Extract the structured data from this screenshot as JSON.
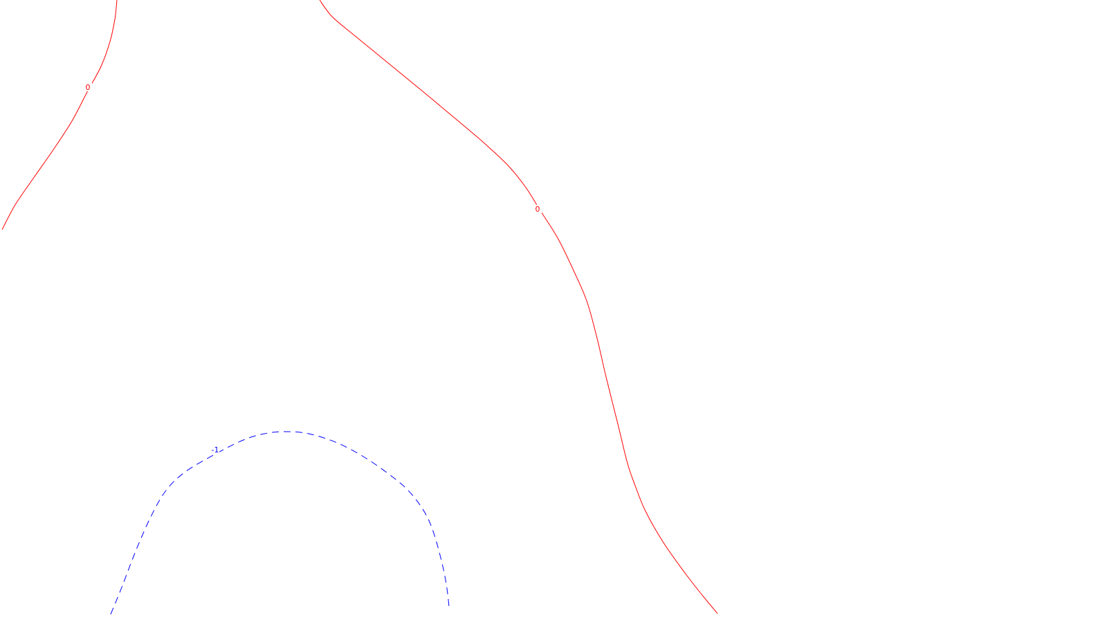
{
  "chart_data": {
    "type": "contour",
    "title": "",
    "xlabel": "",
    "ylabel": "",
    "grid": false,
    "legend": "none",
    "contours": [
      {
        "level": "0",
        "label": "0",
        "color": "#ff0000",
        "style": "solid",
        "segments": [
          {
            "points": [
              [
                169,
                0
              ],
              [
                166,
                28
              ],
              [
                159,
                60
              ],
              [
                146,
                96
              ],
              [
                126,
                133
              ],
              [
                104,
                175
              ],
              [
                76,
                218
              ],
              [
                48,
                258
              ],
              [
                22,
                296
              ],
              [
                3,
                332
              ]
            ],
            "label_at": [
              127,
              127
            ]
          },
          {
            "points": [
              [
                462,
                0
              ],
              [
                480,
                24
              ],
              [
                512,
                51
              ],
              [
                556,
                87
              ],
              [
                606,
                128
              ],
              [
                660,
                173
              ],
              [
                700,
                207
              ],
              [
                735,
                240
              ],
              [
                760,
                271
              ],
              [
                780,
                303
              ],
              [
                806,
                344
              ],
              [
                829,
                391
              ],
              [
                848,
                435
              ],
              [
                862,
                485
              ],
              [
                876,
                545
              ],
              [
                893,
                613
              ],
              [
                907,
                670
              ],
              [
                918,
                702
              ],
              [
                933,
                739
              ],
              [
                958,
                783
              ],
              [
                989,
                827
              ],
              [
                1013,
                858
              ],
              [
                1037,
                887
              ]
            ],
            "label_at": [
              777,
              303
            ]
          }
        ]
      },
      {
        "level": "-1",
        "label": "-1",
        "color": "#0000ff",
        "style": "dashed",
        "segments": [
          {
            "points": [
              [
                160,
                888
              ],
              [
                176,
                849
              ],
              [
                196,
                797
              ],
              [
                218,
                747
              ],
              [
                240,
                709
              ],
              [
                268,
                682
              ],
              [
                312,
                656
              ],
              [
                352,
                636
              ],
              [
                382,
                627
              ],
              [
                411,
                624
              ],
              [
                446,
                627
              ],
              [
                487,
                640
              ],
              [
                525,
                660
              ],
              [
                560,
                684
              ],
              [
                590,
                709
              ],
              [
                614,
                741
              ],
              [
                628,
                774
              ],
              [
                640,
                819
              ],
              [
                646,
                851
              ],
              [
                649,
                877
              ]
            ],
            "label_at": [
              311,
              651
            ]
          }
        ]
      }
    ]
  }
}
